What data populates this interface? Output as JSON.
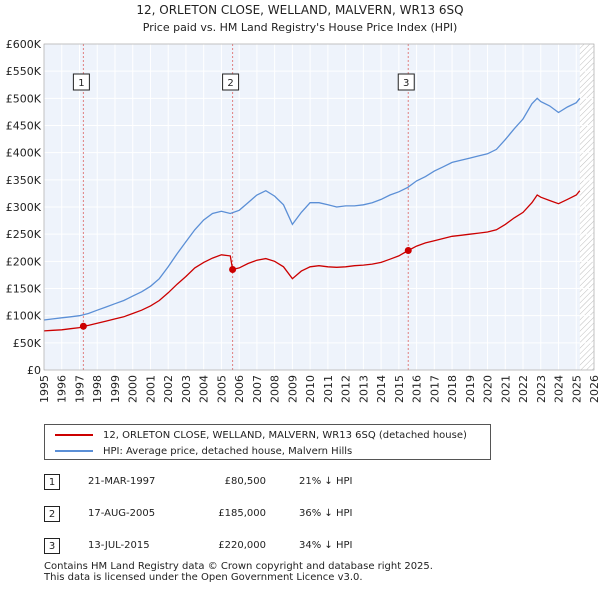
{
  "chart_data": {
    "type": "line",
    "title": "12, ORLETON CLOSE, WELLAND, MALVERN, WR13 6SQ",
    "subtitle": "Price paid vs. HM Land Registry's House Price Index (HPI)",
    "x_range": [
      1995,
      2026
    ],
    "y_range": [
      0,
      600000
    ],
    "x_ticks": [
      "1995",
      "1996",
      "1997",
      "1998",
      "1999",
      "2000",
      "2001",
      "2002",
      "2003",
      "2004",
      "2005",
      "2006",
      "2007",
      "2008",
      "2009",
      "2010",
      "2011",
      "2012",
      "2013",
      "2014",
      "2015",
      "2016",
      "2017",
      "2018",
      "2019",
      "2020",
      "2021",
      "2022",
      "2023",
      "2024",
      "2025",
      "2026"
    ],
    "y_ticks": [
      {
        "value": 0,
        "label": "£0"
      },
      {
        "value": 50000,
        "label": "£50K"
      },
      {
        "value": 100000,
        "label": "£100K"
      },
      {
        "value": 150000,
        "label": "£150K"
      },
      {
        "value": 200000,
        "label": "£200K"
      },
      {
        "value": 250000,
        "label": "£250K"
      },
      {
        "value": 300000,
        "label": "£300K"
      },
      {
        "value": 350000,
        "label": "£350K"
      },
      {
        "value": 400000,
        "label": "£400K"
      },
      {
        "value": 450000,
        "label": "£450K"
      },
      {
        "value": 500000,
        "label": "£500K"
      },
      {
        "value": 550000,
        "label": "£550K"
      },
      {
        "value": 600000,
        "label": "£600K"
      }
    ],
    "grid": true,
    "forecast_start": 2025.2,
    "series": [
      {
        "name": "12, ORLETON CLOSE, WELLAND, MALVERN, WR13 6SQ (detached house)",
        "color": "#cc0000",
        "points": [
          [
            1995.0,
            72000
          ],
          [
            1995.5,
            73000
          ],
          [
            1996.0,
            74000
          ],
          [
            1996.5,
            76000
          ],
          [
            1997.0,
            78000
          ],
          [
            1997.22,
            80500
          ],
          [
            1997.5,
            82000
          ],
          [
            1998.0,
            86000
          ],
          [
            1998.5,
            90000
          ],
          [
            1999.0,
            94000
          ],
          [
            1999.5,
            98000
          ],
          [
            2000.0,
            104000
          ],
          [
            2000.5,
            110000
          ],
          [
            2001.0,
            118000
          ],
          [
            2001.5,
            128000
          ],
          [
            2002.0,
            142000
          ],
          [
            2002.5,
            158000
          ],
          [
            2003.0,
            172000
          ],
          [
            2003.5,
            188000
          ],
          [
            2004.0,
            198000
          ],
          [
            2004.5,
            206000
          ],
          [
            2005.0,
            212000
          ],
          [
            2005.5,
            210000
          ],
          [
            2005.63,
            185000
          ],
          [
            2006.0,
            188000
          ],
          [
            2006.5,
            196000
          ],
          [
            2007.0,
            202000
          ],
          [
            2007.5,
            205000
          ],
          [
            2008.0,
            200000
          ],
          [
            2008.5,
            190000
          ],
          [
            2009.0,
            168000
          ],
          [
            2009.5,
            182000
          ],
          [
            2010.0,
            190000
          ],
          [
            2010.5,
            192000
          ],
          [
            2011.0,
            190000
          ],
          [
            2011.5,
            189000
          ],
          [
            2012.0,
            190000
          ],
          [
            2012.5,
            192000
          ],
          [
            2013.0,
            193000
          ],
          [
            2013.5,
            195000
          ],
          [
            2014.0,
            198000
          ],
          [
            2014.5,
            204000
          ],
          [
            2015.0,
            210000
          ],
          [
            2015.53,
            220000
          ],
          [
            2016.0,
            228000
          ],
          [
            2016.5,
            234000
          ],
          [
            2017.0,
            238000
          ],
          [
            2017.5,
            242000
          ],
          [
            2018.0,
            246000
          ],
          [
            2018.5,
            248000
          ],
          [
            2019.0,
            250000
          ],
          [
            2019.5,
            252000
          ],
          [
            2020.0,
            254000
          ],
          [
            2020.5,
            258000
          ],
          [
            2021.0,
            268000
          ],
          [
            2021.5,
            280000
          ],
          [
            2022.0,
            290000
          ],
          [
            2022.5,
            308000
          ],
          [
            2022.8,
            322000
          ],
          [
            2023.0,
            318000
          ],
          [
            2023.5,
            312000
          ],
          [
            2024.0,
            306000
          ],
          [
            2024.5,
            314000
          ],
          [
            2025.0,
            322000
          ],
          [
            2025.2,
            330000
          ]
        ]
      },
      {
        "name": "HPI: Average price, detached house, Malvern Hills",
        "color": "#5b8fd6",
        "points": [
          [
            1995.0,
            92000
          ],
          [
            1995.5,
            94000
          ],
          [
            1996.0,
            96000
          ],
          [
            1996.5,
            98000
          ],
          [
            1997.0,
            100000
          ],
          [
            1997.5,
            104000
          ],
          [
            1998.0,
            110000
          ],
          [
            1998.5,
            116000
          ],
          [
            1999.0,
            122000
          ],
          [
            1999.5,
            128000
          ],
          [
            2000.0,
            136000
          ],
          [
            2000.5,
            144000
          ],
          [
            2001.0,
            154000
          ],
          [
            2001.5,
            168000
          ],
          [
            2002.0,
            190000
          ],
          [
            2002.5,
            214000
          ],
          [
            2003.0,
            236000
          ],
          [
            2003.5,
            258000
          ],
          [
            2004.0,
            276000
          ],
          [
            2004.5,
            288000
          ],
          [
            2005.0,
            292000
          ],
          [
            2005.5,
            288000
          ],
          [
            2006.0,
            294000
          ],
          [
            2006.5,
            308000
          ],
          [
            2007.0,
            322000
          ],
          [
            2007.5,
            330000
          ],
          [
            2008.0,
            320000
          ],
          [
            2008.5,
            304000
          ],
          [
            2009.0,
            268000
          ],
          [
            2009.5,
            290000
          ],
          [
            2010.0,
            308000
          ],
          [
            2010.5,
            308000
          ],
          [
            2011.0,
            304000
          ],
          [
            2011.5,
            300000
          ],
          [
            2012.0,
            302000
          ],
          [
            2012.5,
            302000
          ],
          [
            2013.0,
            304000
          ],
          [
            2013.5,
            308000
          ],
          [
            2014.0,
            314000
          ],
          [
            2014.5,
            322000
          ],
          [
            2015.0,
            328000
          ],
          [
            2015.5,
            336000
          ],
          [
            2016.0,
            348000
          ],
          [
            2016.5,
            356000
          ],
          [
            2017.0,
            366000
          ],
          [
            2017.5,
            374000
          ],
          [
            2018.0,
            382000
          ],
          [
            2018.5,
            386000
          ],
          [
            2019.0,
            390000
          ],
          [
            2019.5,
            394000
          ],
          [
            2020.0,
            398000
          ],
          [
            2020.5,
            406000
          ],
          [
            2021.0,
            424000
          ],
          [
            2021.5,
            444000
          ],
          [
            2022.0,
            462000
          ],
          [
            2022.5,
            490000
          ],
          [
            2022.8,
            500000
          ],
          [
            2023.0,
            494000
          ],
          [
            2023.5,
            486000
          ],
          [
            2024.0,
            474000
          ],
          [
            2024.5,
            484000
          ],
          [
            2025.0,
            492000
          ],
          [
            2025.2,
            500000
          ]
        ]
      }
    ],
    "sales": [
      {
        "marker": "1",
        "x": 1997.22,
        "y": 80500
      },
      {
        "marker": "2",
        "x": 2005.63,
        "y": 185000
      },
      {
        "marker": "3",
        "x": 2015.53,
        "y": 220000
      }
    ]
  },
  "legend": {
    "property_label": "12, ORLETON CLOSE, WELLAND, MALVERN, WR13 6SQ (detached house)",
    "hpi_label": "HPI: Average price, detached house, Malvern Hills"
  },
  "sales_table": [
    {
      "num": "1",
      "date": "21-MAR-1997",
      "price": "£80,500",
      "hpi": "21% ↓ HPI"
    },
    {
      "num": "2",
      "date": "17-AUG-2005",
      "price": "£185,000",
      "hpi": "36% ↓ HPI"
    },
    {
      "num": "3",
      "date": "13-JUL-2015",
      "price": "£220,000",
      "hpi": "34% ↓ HPI"
    }
  ],
  "footer": {
    "line1": "Contains HM Land Registry data © Crown copyright and database right 2025.",
    "line2": "This data is licensed under the Open Government Licence v3.0."
  },
  "colors": {
    "property": "#cc0000",
    "hpi": "#5b8fd6",
    "grid": "#dddddd",
    "plot_bg": "#eef3fb",
    "hatch": "#888888"
  }
}
